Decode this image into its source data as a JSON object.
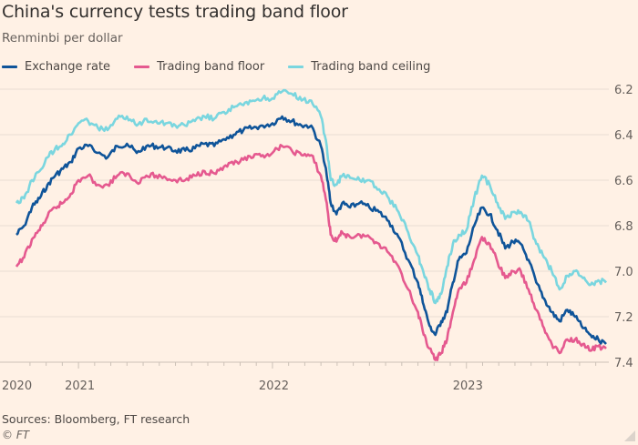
{
  "chart_data": {
    "type": "line",
    "title": "China's currency tests trading band floor",
    "subtitle": "Renminbi per dollar",
    "xlabel": "",
    "ylabel": "Renminbi per dollar",
    "y_inverted": true,
    "ylim": [
      6.2,
      7.4
    ],
    "yticks": [
      "6.2",
      "6.4",
      "6.6",
      "6.8",
      "7.0",
      "7.2",
      "7.4"
    ],
    "ytick_values": [
      6.2,
      6.4,
      6.6,
      6.8,
      7.0,
      7.2,
      7.4
    ],
    "xticks": [
      "2020",
      "2021",
      "2022",
      "2023"
    ],
    "xtick_values": [
      2020.68,
      2021.0,
      2022.0,
      2023.0
    ],
    "xlim": [
      2020.68,
      2023.72
    ],
    "grid": true,
    "legend_position": "top-left",
    "x": [
      2020.68,
      2020.72,
      2020.76,
      2020.8,
      2020.84,
      2020.88,
      2020.92,
      2020.96,
      2021.0,
      2021.05,
      2021.1,
      2021.15,
      2021.2,
      2021.25,
      2021.3,
      2021.35,
      2021.4,
      2021.45,
      2021.5,
      2021.55,
      2021.6,
      2021.65,
      2021.7,
      2021.75,
      2021.8,
      2021.85,
      2021.9,
      2021.95,
      2022.0,
      2022.05,
      2022.1,
      2022.15,
      2022.2,
      2022.25,
      2022.28,
      2022.3,
      2022.33,
      2022.36,
      2022.4,
      2022.45,
      2022.5,
      2022.55,
      2022.6,
      2022.65,
      2022.7,
      2022.75,
      2022.78,
      2022.81,
      2022.84,
      2022.87,
      2022.9,
      2022.93,
      2022.96,
      2023.0,
      2023.04,
      2023.08,
      2023.12,
      2023.16,
      2023.2,
      2023.24,
      2023.28,
      2023.32,
      2023.36,
      2023.4,
      2023.44,
      2023.48,
      2023.52,
      2023.56,
      2023.6,
      2023.64,
      2023.68,
      2023.72
    ],
    "series": [
      {
        "name": "Exchange rate",
        "color": "#0f5499",
        "values": [
          6.84,
          6.8,
          6.72,
          6.68,
          6.62,
          6.58,
          6.55,
          6.52,
          6.46,
          6.45,
          6.48,
          6.5,
          6.45,
          6.44,
          6.48,
          6.45,
          6.45,
          6.46,
          6.47,
          6.47,
          6.46,
          6.44,
          6.45,
          6.42,
          6.4,
          6.38,
          6.37,
          6.36,
          6.35,
          6.32,
          6.34,
          6.36,
          6.36,
          6.45,
          6.58,
          6.7,
          6.75,
          6.7,
          6.72,
          6.7,
          6.72,
          6.74,
          6.78,
          6.85,
          6.95,
          7.05,
          7.15,
          7.24,
          7.28,
          7.22,
          7.18,
          7.05,
          6.95,
          6.92,
          6.8,
          6.72,
          6.75,
          6.82,
          6.9,
          6.87,
          6.88,
          6.95,
          7.05,
          7.12,
          7.18,
          7.22,
          7.17,
          7.2,
          7.25,
          7.28,
          7.3,
          7.32
        ]
      },
      {
        "name": "Trading band floor",
        "color": "#e5598f",
        "values": [
          6.98,
          6.94,
          6.86,
          6.82,
          6.76,
          6.72,
          6.7,
          6.66,
          6.6,
          6.58,
          6.62,
          6.62,
          6.58,
          6.57,
          6.61,
          6.58,
          6.58,
          6.59,
          6.6,
          6.6,
          6.58,
          6.56,
          6.57,
          6.54,
          6.53,
          6.51,
          6.5,
          6.49,
          6.48,
          6.45,
          6.47,
          6.49,
          6.49,
          6.58,
          6.7,
          6.84,
          6.87,
          6.83,
          6.85,
          6.84,
          6.85,
          6.88,
          6.92,
          6.98,
          7.08,
          7.18,
          7.28,
          7.34,
          7.39,
          7.36,
          7.3,
          7.18,
          7.08,
          7.05,
          6.95,
          6.85,
          6.88,
          6.96,
          7.03,
          7.0,
          7.0,
          7.08,
          7.17,
          7.25,
          7.32,
          7.36,
          7.3,
          7.3,
          7.32,
          7.35,
          7.33,
          7.34
        ]
      },
      {
        "name": "Trading band ceiling",
        "color": "#7ad6df",
        "values": [
          6.7,
          6.68,
          6.6,
          6.56,
          6.5,
          6.46,
          6.44,
          6.4,
          6.35,
          6.34,
          6.37,
          6.38,
          6.33,
          6.32,
          6.36,
          6.33,
          6.34,
          6.35,
          6.36,
          6.36,
          6.34,
          6.32,
          6.33,
          6.3,
          6.28,
          6.27,
          6.25,
          6.24,
          6.24,
          6.21,
          6.22,
          6.25,
          6.25,
          6.32,
          6.45,
          6.6,
          6.62,
          6.58,
          6.59,
          6.6,
          6.6,
          6.64,
          6.68,
          6.74,
          6.83,
          6.93,
          7.01,
          7.08,
          7.14,
          7.1,
          6.98,
          6.88,
          6.84,
          6.82,
          6.68,
          6.58,
          6.62,
          6.7,
          6.77,
          6.74,
          6.74,
          6.78,
          6.88,
          6.94,
          7.0,
          7.08,
          7.02,
          7.0,
          7.03,
          7.06,
          7.04,
          7.05
        ]
      }
    ]
  },
  "source": "Sources: Bloomberg, FT research",
  "copyright": "© FT"
}
